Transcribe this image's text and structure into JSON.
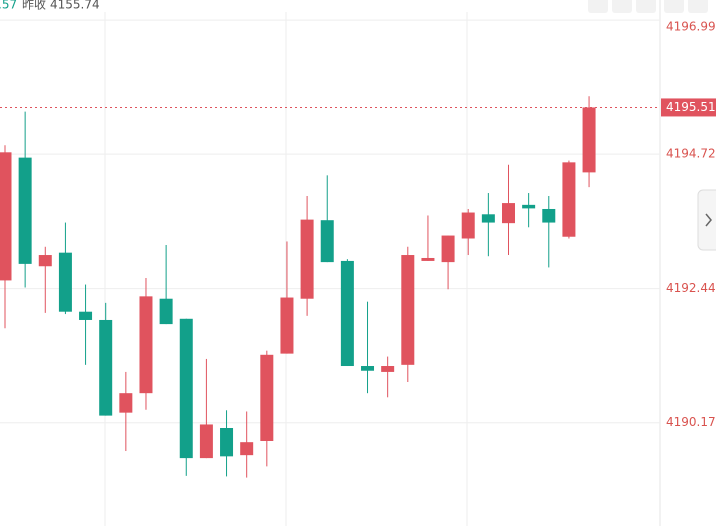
{
  "header": {
    "change_fragment": ".57",
    "prev_close_label": "昨收",
    "prev_close": 4155.74
  },
  "chart_data": {
    "type": "candlestick",
    "categories": [
      null,
      null,
      null,
      null,
      null,
      null,
      null,
      null,
      null,
      null,
      null,
      null,
      null,
      null,
      null,
      null,
      null,
      null,
      null,
      null,
      null,
      null,
      null,
      null,
      null,
      null,
      null,
      null,
      null,
      null
    ],
    "open": [
      4192.58,
      4194.66,
      4192.82,
      4193.05,
      4192.05,
      4191.91,
      4190.34,
      4190.67,
      4192.27,
      4191.93,
      4189.57,
      4190.08,
      4189.62,
      4189.86,
      4191.34,
      4192.27,
      4193.6,
      4192.91,
      4191.13,
      4191.03,
      4191.15,
      4192.91,
      4192.89,
      4193.29,
      4193.7,
      4193.55,
      4193.86,
      4193.79,
      4193.32,
      4194.41
    ],
    "high": [
      4194.87,
      4195.44,
      4193.15,
      4193.56,
      4192.51,
      4192.2,
      4191.03,
      4192.62,
      4193.18,
      4191.93,
      4191.25,
      4190.38,
      4190.36,
      4191.39,
      4193.24,
      4194.01,
      4194.36,
      4192.94,
      4192.22,
      4191.29,
      4193.15,
      4193.68,
      4193.34,
      4193.79,
      4194.06,
      4194.54,
      4194.06,
      4194.01,
      4194.61,
      4195.7
    ],
    "low": [
      4191.77,
      4192.46,
      4192.03,
      4192.01,
      4191.15,
      4190.29,
      4189.69,
      4190.39,
      4191.84,
      4189.27,
      4189.57,
      4189.26,
      4189.24,
      4189.43,
      4191.34,
      4191.98,
      4192.89,
      4191.13,
      4190.67,
      4190.6,
      4190.86,
      4192.91,
      4192.43,
      4193.01,
      4192.99,
      4193.01,
      4193.48,
      4192.8,
      4193.29,
      4194.16
    ],
    "close": [
      4194.75,
      4192.86,
      4193.01,
      4192.05,
      4191.91,
      4190.29,
      4190.67,
      4192.31,
      4191.84,
      4189.57,
      4190.14,
      4189.6,
      4189.84,
      4191.32,
      4192.29,
      4193.61,
      4192.89,
      4191.13,
      4191.05,
      4191.13,
      4193.01,
      4192.96,
      4193.34,
      4193.73,
      4193.56,
      4193.89,
      4193.8,
      4193.56,
      4194.58,
      4195.51
    ],
    "up_color": "#e0535e",
    "down_color": "#12a08a",
    "ylim": [
      4188.42,
      4197.33
    ],
    "yticks": [
      4190.17,
      4192.44,
      4194.72,
      4196.99
    ],
    "grid": true,
    "last_price": 4195.51
  }
}
